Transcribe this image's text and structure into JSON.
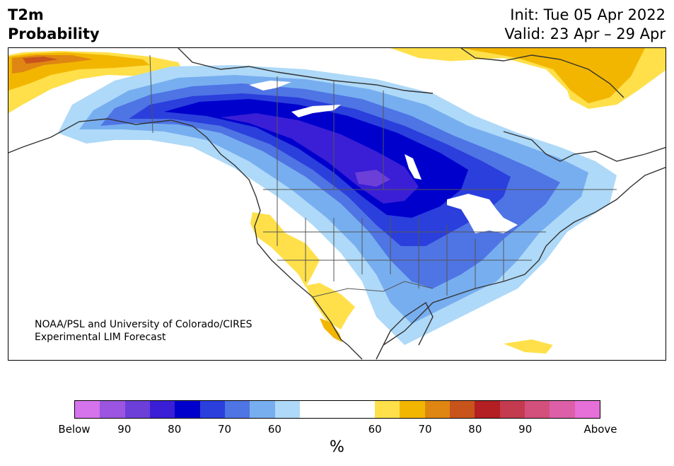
{
  "header": {
    "title_line1": "T2m",
    "title_line2": "Probability",
    "init": "Init: Tue 05 Apr 2022",
    "valid": "Valid: 23 Apr – 29 Apr"
  },
  "credit": {
    "line1": "NOAA/PSL and University of Colorado/CIRES",
    "line2": "Experimental LIM Forecast"
  },
  "colorbar": {
    "colors": [
      "#d573ec",
      "#9b55e0",
      "#6b3fd8",
      "#3a1fd6",
      "#0000cc",
      "#2b3fdc",
      "#4f74e4",
      "#77aef0",
      "#aed9f8",
      "#ffffff",
      "#ffe04a",
      "#f2b600",
      "#df8612",
      "#c8541c",
      "#b31f23",
      "#c43a4e",
      "#d34f7c",
      "#dc5fa8",
      "#e76fd8"
    ],
    "tick_labels": [
      "Below",
      "90",
      "80",
      "70",
      "60",
      "60",
      "70",
      "80",
      "90",
      "Above"
    ],
    "unit": "%"
  }
}
